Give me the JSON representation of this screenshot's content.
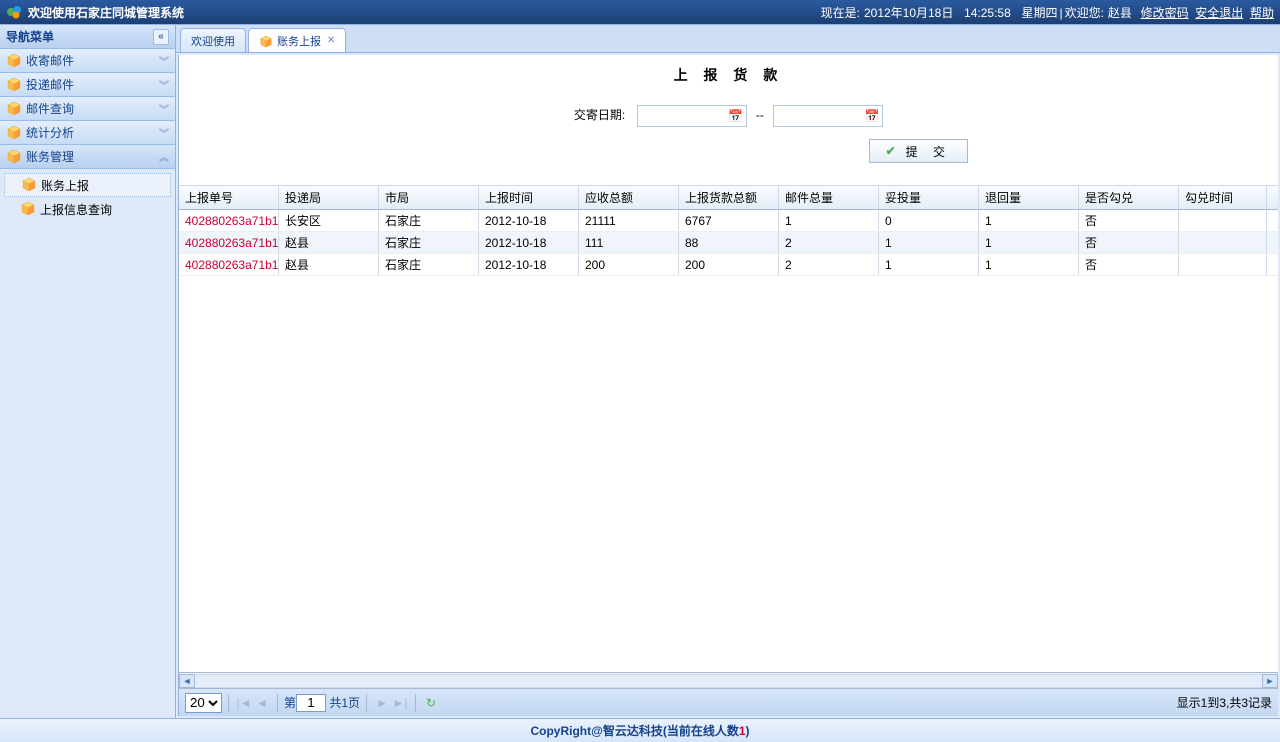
{
  "header": {
    "title": "欢迎使用石家庄同城管理系统",
    "now_label": "现在是:",
    "date": "2012年10月18日",
    "time": "14:25:58",
    "weekday": "星期四",
    "welcome_label": "欢迎您:",
    "user": "赵县",
    "change_pwd": "修改密码",
    "logout": "安全退出",
    "help": "帮助"
  },
  "sidebar": {
    "title": "导航菜单",
    "items": [
      {
        "label": "收寄邮件",
        "expanded": false
      },
      {
        "label": "投递邮件",
        "expanded": false
      },
      {
        "label": "邮件查询",
        "expanded": false
      },
      {
        "label": "统计分析",
        "expanded": false
      },
      {
        "label": "账务管理",
        "expanded": true,
        "children": [
          {
            "label": "账务上报",
            "selected": true
          },
          {
            "label": "上报信息查询",
            "selected": false
          }
        ]
      }
    ]
  },
  "tabs": [
    {
      "label": "欢迎使用",
      "active": false,
      "closable": false,
      "icon": false
    },
    {
      "label": "账务上报",
      "active": true,
      "closable": true,
      "icon": true
    }
  ],
  "form": {
    "title": "上 报 货 款",
    "date_label": "交寄日期:",
    "date_from": "",
    "date_to": "",
    "submit_label": "提 交"
  },
  "grid": {
    "columns": [
      "上报单号",
      "投递局",
      "市局",
      "上报时间",
      "应收总额",
      "上报货款总额",
      "邮件总量",
      "妥投量",
      "退回量",
      "是否勾兑",
      "勾兑时间"
    ],
    "rows": [
      [
        "402880263a71b1",
        "长安区",
        "石家庄",
        "2012-10-18",
        "21111",
        "6767",
        "1",
        "0",
        "1",
        "否",
        ""
      ],
      [
        "402880263a71b1",
        "赵县",
        "石家庄",
        "2012-10-18",
        "111",
        "88",
        "2",
        "1",
        "1",
        "否",
        ""
      ],
      [
        "402880263a71b1",
        "赵县",
        "石家庄",
        "2012-10-18",
        "200",
        "200",
        "2",
        "1",
        "1",
        "否",
        ""
      ]
    ]
  },
  "paging": {
    "page_size": "20",
    "page_label_prefix": "第",
    "page_num": "1",
    "page_total_label": "共1页",
    "display_msg": "显示1到3,共3记录"
  },
  "footer": {
    "text_prefix": "CopyRight@智云达科技(当前在线人数",
    "online_count": "1",
    "text_suffix": ")"
  },
  "colors": {
    "header_bg_top": "#2a5aa0",
    "header_bg_bottom": "#1d3f73",
    "panel_bg": "#dfe8f6",
    "border": "#8db2e3",
    "accent_text": "#15428b",
    "link_red": "#c03"
  }
}
